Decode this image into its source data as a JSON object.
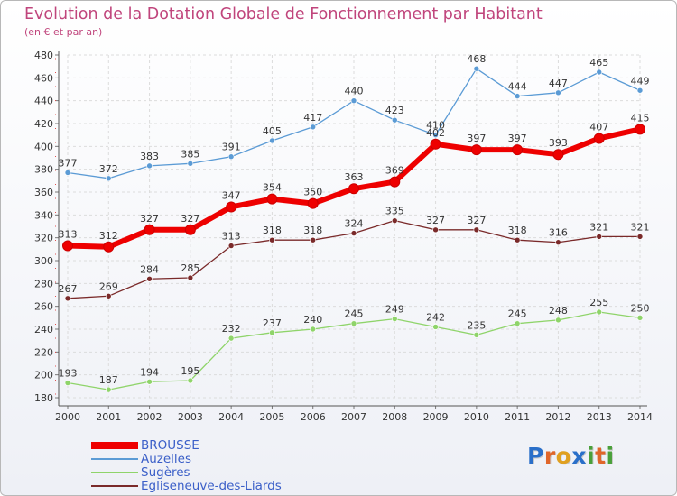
{
  "title": "Evolution de la Dotation Globale de Fonctionnement par Habitant",
  "subtitle": "(en € et par an)",
  "logo": {
    "text": "Proxiti",
    "letters": [
      "P",
      "r",
      "o",
      "x",
      "i",
      "t",
      "i"
    ],
    "colors": [
      "#2a6fc9",
      "#e0662a",
      "#e0a020",
      "#2a6fc9",
      "#4aa03a",
      "#e0662a",
      "#4aa03a"
    ]
  },
  "chart_data": {
    "type": "line",
    "title": "Evolution de la Dotation Globale de Fonctionnement par Habitant",
    "subtitle": "(en € et par an)",
    "x": [
      "2000",
      "2001",
      "2002",
      "2003",
      "2004",
      "2005",
      "2006",
      "2007",
      "2008",
      "2009",
      "2010",
      "2011",
      "2012",
      "2013",
      "2014"
    ],
    "ylim": [
      180,
      480
    ],
    "yticks": [
      180,
      200,
      220,
      240,
      260,
      280,
      300,
      320,
      340,
      360,
      380,
      400,
      420,
      440,
      460,
      480
    ],
    "grid": true,
    "legend_position": "bottom-left",
    "series": [
      {
        "name": "BROUSSE",
        "color": "#ee0000",
        "values": [
          313,
          312,
          327,
          327,
          347,
          354,
          350,
          363,
          369,
          402,
          397,
          397,
          393,
          407,
          415
        ]
      },
      {
        "name": "Auzelles",
        "color": "#5b9bd5",
        "values": [
          377,
          372,
          383,
          385,
          391,
          405,
          417,
          440,
          423,
          410,
          468,
          444,
          447,
          465,
          449
        ]
      },
      {
        "name": "Sugères",
        "color": "#8fd46a",
        "values": [
          193,
          187,
          194,
          195,
          232,
          237,
          240,
          245,
          249,
          242,
          235,
          245,
          248,
          255,
          250
        ]
      },
      {
        "name": "Egliseneuve-des-Liards",
        "color": "#7a2a2a",
        "values": [
          267,
          269,
          284,
          285,
          313,
          318,
          318,
          324,
          335,
          327,
          327,
          318,
          316,
          321,
          321
        ]
      }
    ]
  }
}
